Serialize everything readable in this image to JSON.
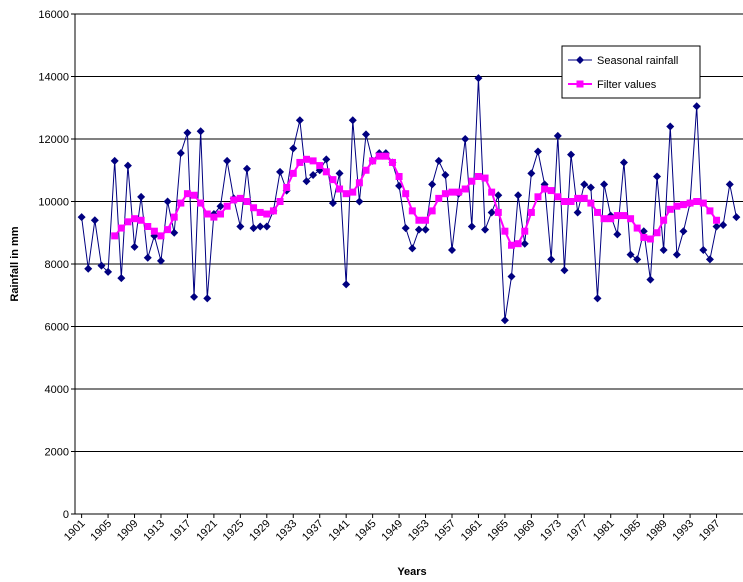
{
  "chart_data": {
    "type": "line",
    "x_label": "Years",
    "y_label": "Rainfall in mm",
    "x": [
      1901,
      1902,
      1903,
      1904,
      1905,
      1906,
      1907,
      1908,
      1909,
      1910,
      1911,
      1912,
      1913,
      1914,
      1915,
      1916,
      1917,
      1918,
      1919,
      1920,
      1921,
      1922,
      1923,
      1924,
      1925,
      1926,
      1927,
      1928,
      1929,
      1930,
      1931,
      1932,
      1933,
      1934,
      1935,
      1936,
      1937,
      1938,
      1939,
      1940,
      1941,
      1942,
      1943,
      1944,
      1945,
      1946,
      1947,
      1948,
      1949,
      1950,
      1951,
      1952,
      1953,
      1954,
      1955,
      1956,
      1957,
      1958,
      1959,
      1960,
      1961,
      1962,
      1963,
      1964,
      1965,
      1966,
      1967,
      1968,
      1969,
      1970,
      1971,
      1972,
      1973,
      1974,
      1975,
      1976,
      1977,
      1978,
      1979,
      1980,
      1981,
      1982,
      1983,
      1984,
      1985,
      1986,
      1987,
      1988,
      1989,
      1990,
      1991,
      1992,
      1993,
      1994,
      1995,
      1996,
      1997,
      1998,
      1999,
      2000
    ],
    "series": [
      {
        "name": "Seasonal rainfall",
        "color": "#000080",
        "marker": "diamond",
        "values": [
          9500,
          7850,
          9400,
          7950,
          7750,
          11300,
          7550,
          11150,
          8550,
          10150,
          8200,
          8900,
          8100,
          10000,
          9000,
          11550,
          12200,
          6950,
          12250,
          6900,
          9600,
          9850,
          11300,
          10100,
          9200,
          11050,
          9150,
          9200,
          9200,
          9700,
          10950,
          10350,
          11700,
          12600,
          10650,
          10850,
          11000,
          11350,
          9950,
          10900,
          7350,
          12600,
          10000,
          12150,
          11300,
          11550,
          11550,
          11250,
          10500,
          9150,
          8500,
          9100,
          9100,
          10550,
          11300,
          10850,
          8450,
          10250,
          12000,
          9200,
          13950,
          9100,
          9650,
          10200,
          6200,
          7600,
          10200,
          8650,
          10900,
          11600,
          10550,
          8150,
          12100,
          7800,
          11500,
          9650,
          10550,
          10450,
          6900,
          10550,
          9550,
          8950,
          11250,
          8300,
          8150,
          9050,
          7500,
          10800,
          8450,
          12400,
          8300,
          9050,
          9950,
          13050,
          8450,
          8150,
          9200,
          9250,
          10550,
          9500
        ]
      },
      {
        "name": "Filter values",
        "color": "#ff00ff",
        "marker": "square",
        "values": [
          null,
          null,
          null,
          null,
          null,
          8900,
          9150,
          9350,
          9450,
          9400,
          9200,
          9050,
          8900,
          9100,
          9500,
          9950,
          10250,
          10200,
          9950,
          9600,
          9500,
          9600,
          9850,
          10050,
          10100,
          10000,
          9800,
          9650,
          9600,
          9700,
          10000,
          10450,
          10900,
          11250,
          11350,
          11300,
          11150,
          10950,
          10700,
          10400,
          10250,
          10300,
          10600,
          11000,
          11300,
          11450,
          11450,
          11250,
          10800,
          10250,
          9700,
          9400,
          9400,
          9700,
          10100,
          10250,
          10300,
          10300,
          10400,
          10650,
          10800,
          10750,
          10300,
          9650,
          9050,
          8600,
          8650,
          9050,
          9650,
          10150,
          10400,
          10350,
          10150,
          10000,
          10000,
          10100,
          10100,
          9950,
          9650,
          9450,
          9450,
          9550,
          9550,
          9450,
          9150,
          8850,
          8800,
          9000,
          9400,
          9750,
          9850,
          9900,
          9950,
          10000,
          9950,
          9700,
          9400,
          null,
          null,
          null
        ]
      }
    ],
    "xlim": [
      1900,
      2001
    ],
    "xticks": [
      1901,
      1905,
      1909,
      1913,
      1917,
      1921,
      1925,
      1929,
      1933,
      1937,
      1941,
      1945,
      1949,
      1953,
      1957,
      1961,
      1965,
      1969,
      1973,
      1977,
      1981,
      1985,
      1989,
      1993,
      1997
    ],
    "ylim": [
      0,
      16000
    ],
    "yticks": [
      0,
      2000,
      4000,
      6000,
      8000,
      10000,
      12000,
      14000,
      16000
    ],
    "grid": true,
    "legend": "top-right"
  }
}
